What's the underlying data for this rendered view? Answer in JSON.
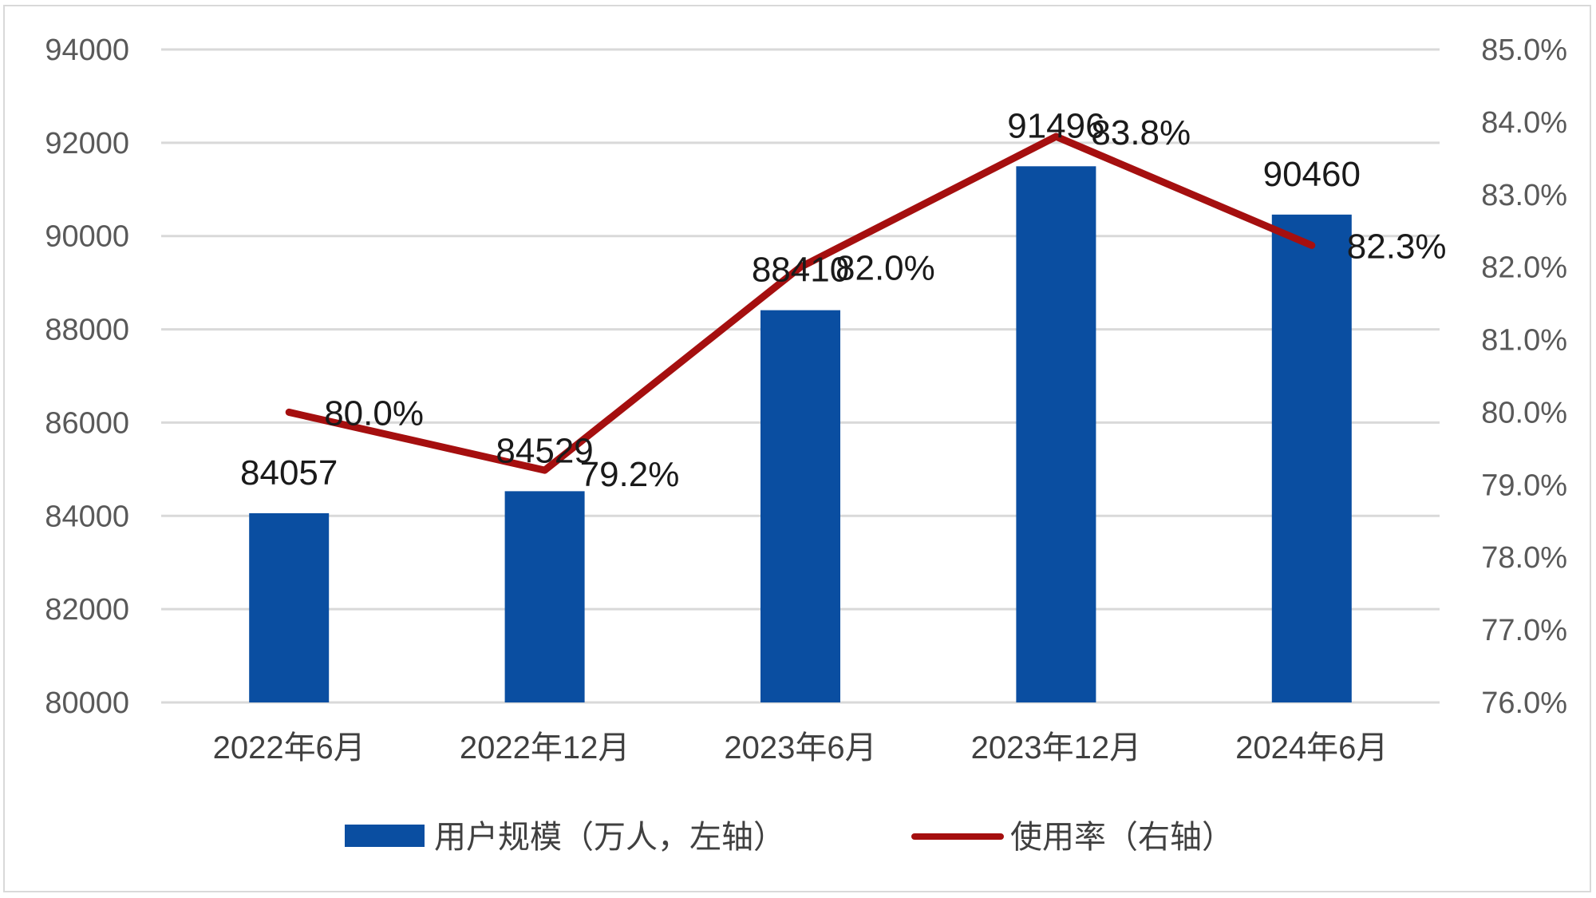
{
  "chart_data": {
    "type": "bar+line",
    "categories": [
      "2022年6月",
      "2022年12月",
      "2023年6月",
      "2023年12月",
      "2024年6月"
    ],
    "series": [
      {
        "name": "用户规模（万人，左轴）",
        "type": "bar",
        "axis": "left",
        "values": [
          84057,
          84529,
          88410,
          91496,
          90460
        ],
        "labels": [
          "84057",
          "84529",
          "88410",
          "91496",
          "90460"
        ]
      },
      {
        "name": "使用率（右轴）",
        "type": "line",
        "axis": "right",
        "values": [
          80.0,
          79.2,
          82.0,
          83.8,
          82.3
        ],
        "labels": [
          "80.0%",
          "79.2%",
          "82.0%",
          "83.8%",
          "82.3%"
        ]
      }
    ],
    "left_axis": {
      "min": 80000,
      "max": 94000,
      "ticks": [
        "80000",
        "82000",
        "84000",
        "86000",
        "88000",
        "90000",
        "92000",
        "94000"
      ]
    },
    "right_axis": {
      "min": 76.0,
      "max": 85.0,
      "ticks": [
        "76.0%",
        "77.0%",
        "78.0%",
        "79.0%",
        "80.0%",
        "81.0%",
        "82.0%",
        "83.0%",
        "84.0%",
        "85.0%"
      ]
    },
    "grid": true,
    "legend_position": "bottom",
    "colors": {
      "bar": "#0a4ea1",
      "line": "#a50f0f",
      "grid": "#d9d9d9"
    }
  }
}
